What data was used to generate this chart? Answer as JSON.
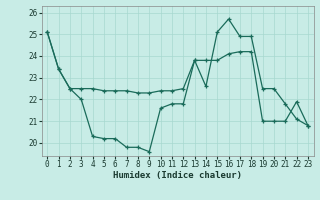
{
  "xlabel": "Humidex (Indice chaleur)",
  "background_color": "#c8ece6",
  "grid_color": "#a8d8d0",
  "line_color": "#1a6b5a",
  "x_ticks": [
    0,
    1,
    2,
    3,
    4,
    5,
    6,
    7,
    8,
    9,
    10,
    11,
    12,
    13,
    14,
    15,
    16,
    17,
    18,
    19,
    20,
    21,
    22,
    23
  ],
  "y_ticks": [
    20,
    21,
    22,
    23,
    24,
    25,
    26
  ],
  "ylim": [
    19.4,
    26.3
  ],
  "xlim": [
    -0.5,
    23.5
  ],
  "line1_x": [
    0,
    1,
    2,
    3,
    4,
    5,
    6,
    7,
    8,
    9,
    10,
    11,
    12,
    13,
    14,
    15,
    16,
    17,
    18,
    19,
    20,
    21,
    22,
    23
  ],
  "line1_y": [
    25.1,
    23.4,
    22.5,
    22.0,
    20.3,
    20.2,
    20.2,
    19.8,
    19.8,
    19.6,
    21.6,
    21.8,
    21.8,
    23.8,
    22.6,
    25.1,
    25.7,
    24.9,
    24.9,
    22.5,
    22.5,
    21.8,
    21.1,
    20.8
  ],
  "line2_x": [
    0,
    1,
    2,
    3,
    4,
    5,
    6,
    7,
    8,
    9,
    10,
    11,
    12,
    13,
    14,
    15,
    16,
    17,
    18,
    19,
    20,
    21,
    22,
    23
  ],
  "line2_y": [
    25.1,
    23.4,
    22.5,
    22.5,
    22.5,
    22.4,
    22.4,
    22.4,
    22.3,
    22.3,
    22.4,
    22.4,
    22.5,
    23.8,
    23.8,
    23.8,
    24.1,
    24.2,
    24.2,
    21.0,
    21.0,
    21.0,
    21.9,
    20.8
  ],
  "tick_fontsize": 5.5,
  "xlabel_fontsize": 6.5,
  "linewidth": 0.9,
  "markersize": 3
}
